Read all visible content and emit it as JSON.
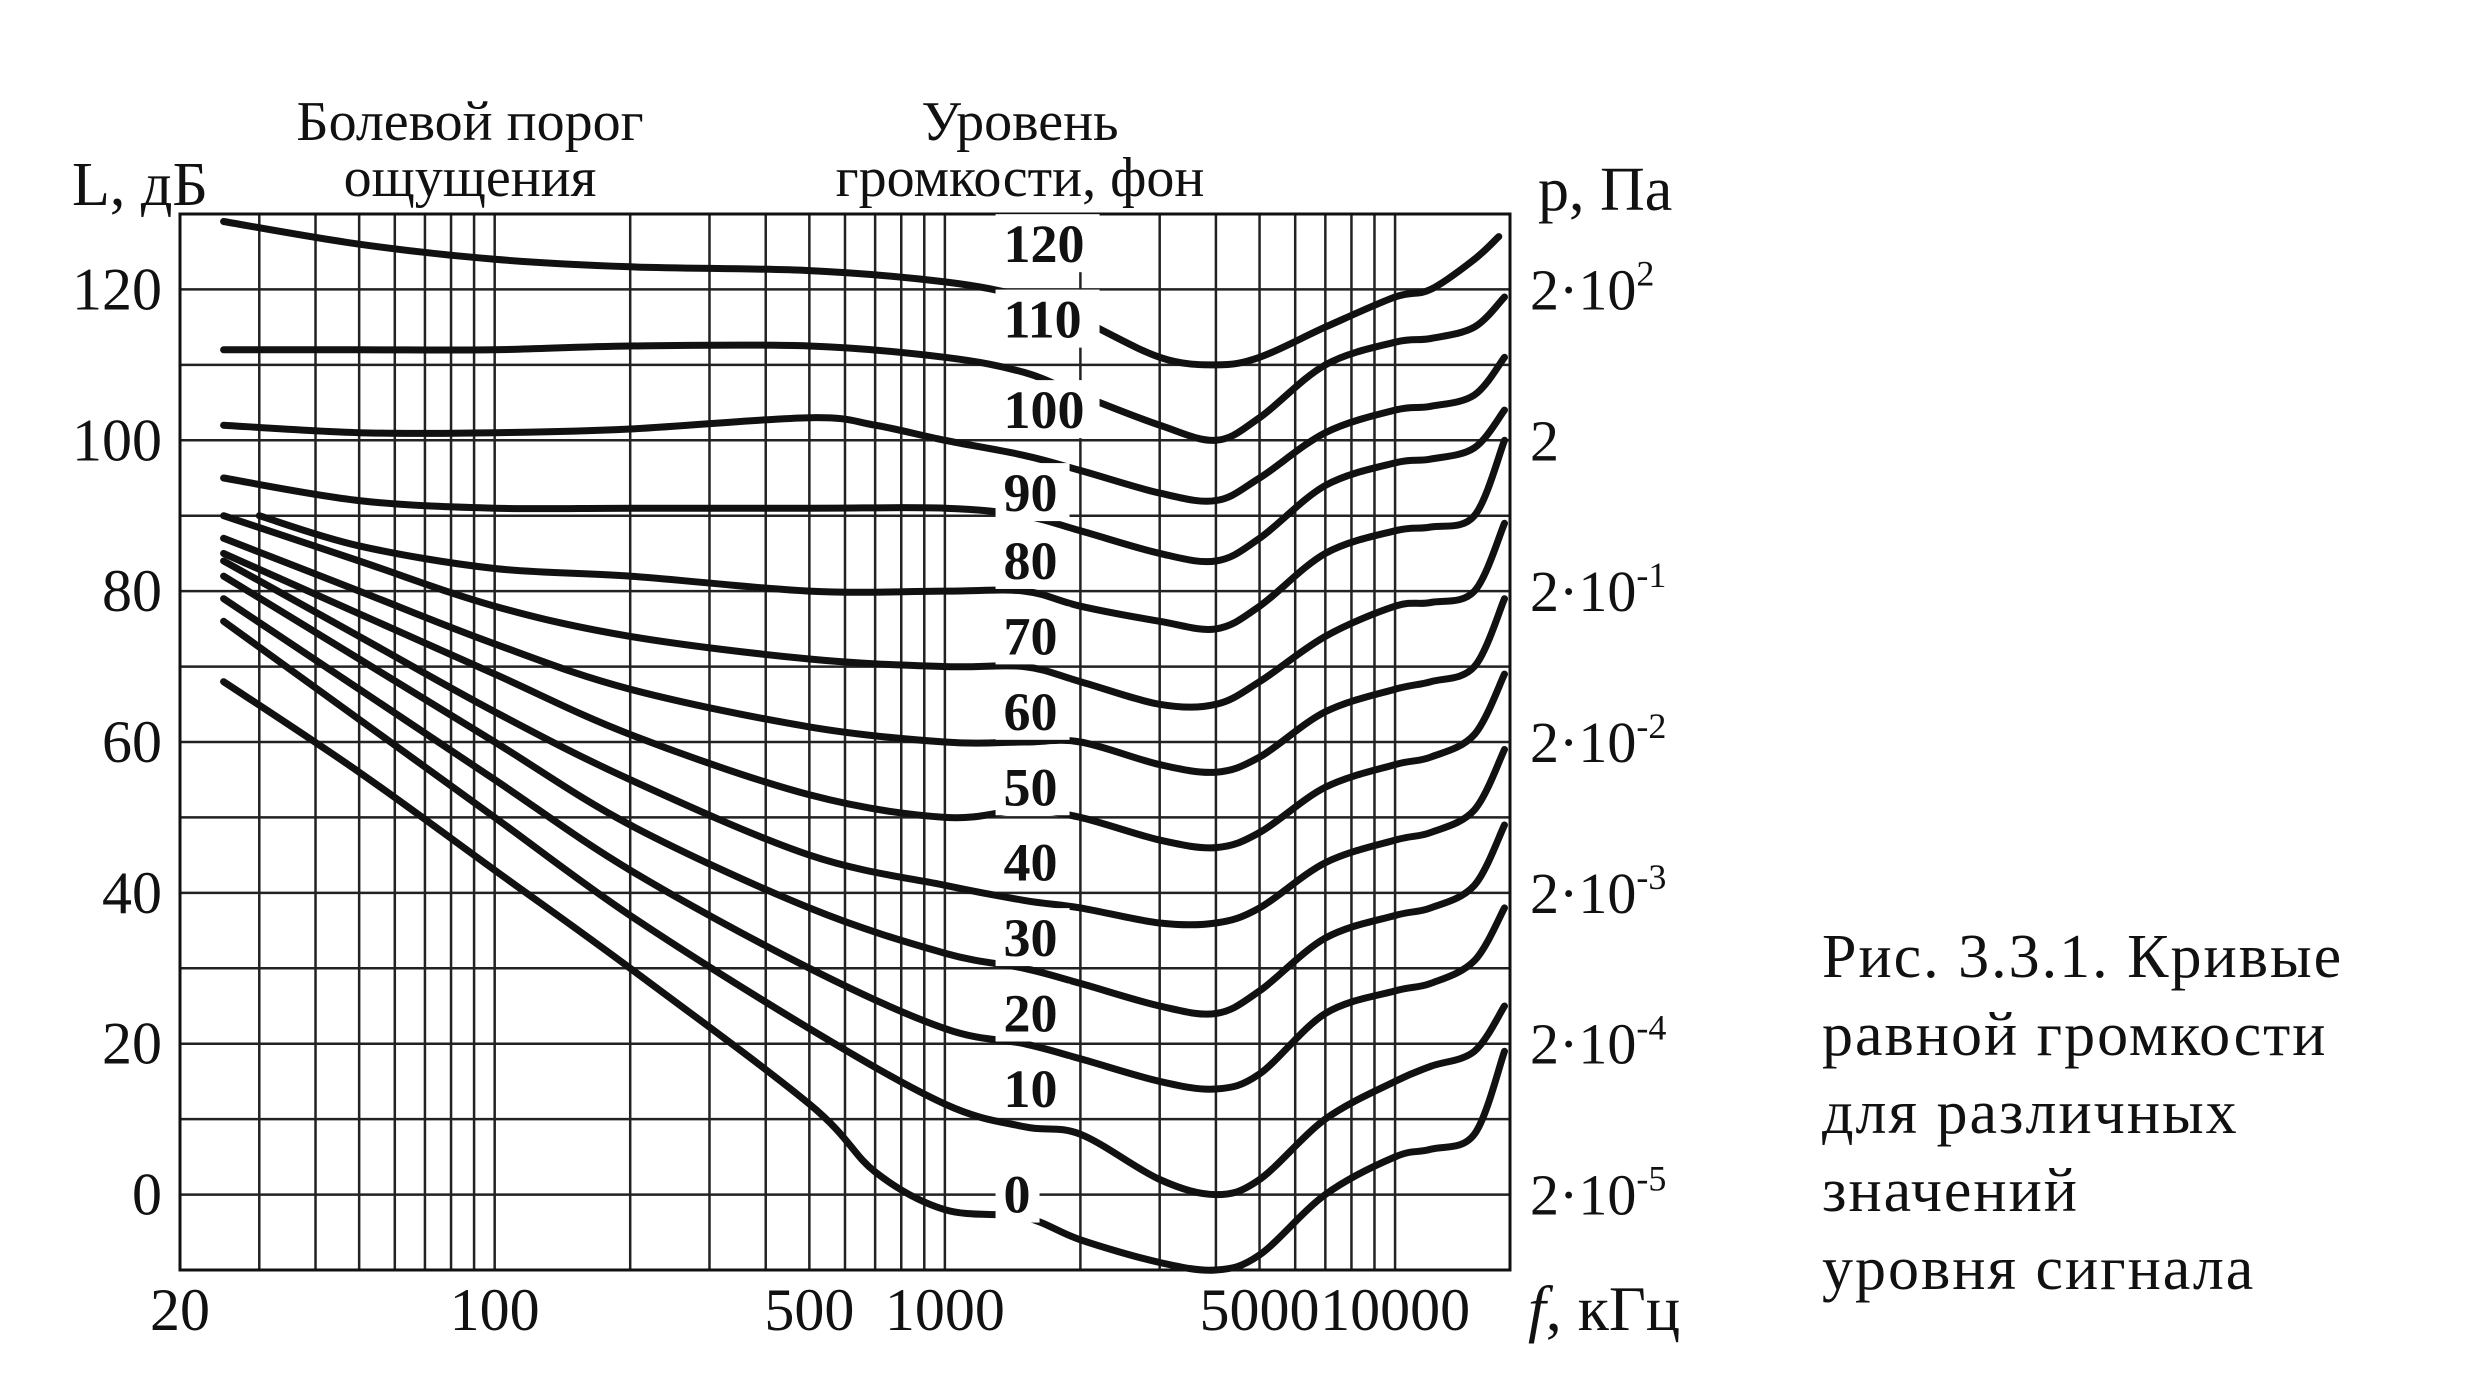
{
  "chart_data": {
    "type": "line",
    "y_axis_label": "L, дБ",
    "x_axis_label_italic": "f",
    "x_axis_label_rest": ", кГц",
    "right_axis_label": "р, Па",
    "annotation_pain": [
      "Болевой порог",
      "ощущения"
    ],
    "annotation_level": [
      "Уровень",
      "громкости, фон"
    ],
    "x_log": true,
    "xlim": [
      20,
      18000
    ],
    "ylim": [
      -10,
      130
    ],
    "grid": true,
    "y_ticks": [
      0,
      20,
      40,
      60,
      80,
      100,
      120
    ],
    "x_tick_labels": [
      {
        "value": 20,
        "label": "20"
      },
      {
        "value": 100,
        "label": "100"
      },
      {
        "value": 500,
        "label": "500"
      },
      {
        "value": 1000,
        "label": "1000"
      },
      {
        "value": 5000,
        "label": "5000"
      },
      {
        "value": 10000,
        "label": "10000"
      }
    ],
    "right_ticks": [
      {
        "y": 120,
        "base": "2·10",
        "exp": "2"
      },
      {
        "y": 100,
        "base": "2",
        "exp": ""
      },
      {
        "y": 80,
        "base": "2·10",
        "exp": "-1"
      },
      {
        "y": 60,
        "base": "2·10",
        "exp": "-2"
      },
      {
        "y": 40,
        "base": "2·10",
        "exp": "-3"
      },
      {
        "y": 20,
        "base": "2·10",
        "exp": "-4"
      },
      {
        "y": 0,
        "base": "2·10",
        "exp": "-5"
      }
    ],
    "series": [
      {
        "name": "120",
        "label_x": 1350,
        "label_y": 126,
        "x": [
          25,
          50,
          100,
          200,
          500,
          1000,
          1500,
          2000,
          3000,
          4000,
          5000,
          7000,
          10000,
          12000,
          15000,
          17000
        ],
        "y": [
          129,
          126,
          124,
          123,
          122.5,
          121,
          119,
          116,
          111,
          110,
          111,
          115,
          119,
          120,
          124,
          127
        ]
      },
      {
        "name": "110",
        "label_x": 1350,
        "label_y": 116,
        "x": [
          25,
          50,
          100,
          200,
          500,
          1000,
          1500,
          2000,
          3000,
          4000,
          5000,
          7000,
          10000,
          12000,
          15000,
          17500
        ],
        "y": [
          112,
          112,
          112,
          112.5,
          112.5,
          111,
          109,
          106,
          102,
          100,
          103,
          110,
          113,
          113.5,
          115,
          119
        ]
      },
      {
        "name": "100",
        "label_x": 1350,
        "label_y": 104,
        "x": [
          25,
          50,
          100,
          200,
          500,
          700,
          1000,
          1500,
          2000,
          3000,
          4000,
          5000,
          7000,
          10000,
          12000,
          15000,
          17500
        ],
        "y": [
          102,
          101,
          101,
          101.5,
          103,
          102,
          100,
          98,
          96,
          93,
          92,
          95,
          101,
          104,
          104.5,
          106,
          111
        ]
      },
      {
        "name": "90",
        "label_x": 1350,
        "label_y": 93,
        "x": [
          25,
          50,
          100,
          200,
          500,
          1000,
          1500,
          2000,
          3000,
          4000,
          5000,
          7000,
          10000,
          12000,
          15000,
          17500
        ],
        "y": [
          95,
          92,
          91,
          91,
          91,
          91,
          90,
          88,
          85,
          84,
          87,
          94,
          97,
          97.5,
          99,
          104
        ]
      },
      {
        "name": "80",
        "label_x": 1350,
        "label_y": 84,
        "x": [
          30,
          50,
          100,
          200,
          500,
          1000,
          1500,
          2000,
          3000,
          4000,
          5000,
          7000,
          10000,
          12000,
          15000,
          17500
        ],
        "y": [
          90,
          86,
          83,
          82,
          80,
          80,
          80,
          78,
          76,
          75,
          78,
          85,
          88,
          88.5,
          90,
          100
        ]
      },
      {
        "name": "70",
        "label_x": 1350,
        "label_y": 74,
        "x": [
          25,
          50,
          100,
          200,
          500,
          1000,
          1500,
          2000,
          3000,
          4000,
          5000,
          7000,
          10000,
          12000,
          15000,
          17500
        ],
        "y": [
          90,
          84,
          78,
          74,
          71,
          70,
          70,
          68,
          65,
          65,
          68,
          74,
          78,
          78.5,
          80,
          89
        ]
      },
      {
        "name": "60",
        "label_x": 1350,
        "label_y": 64,
        "x": [
          25,
          50,
          100,
          200,
          500,
          1000,
          1500,
          2000,
          3000,
          4000,
          5000,
          7000,
          10000,
          12000,
          15000,
          17500
        ],
        "y": [
          87,
          80,
          73,
          67,
          62,
          60,
          60,
          60,
          57,
          56,
          58,
          64,
          67,
          68,
          70,
          79
        ]
      },
      {
        "name": "50",
        "label_x": 1350,
        "label_y": 54,
        "x": [
          25,
          50,
          100,
          200,
          500,
          1000,
          1500,
          2000,
          3000,
          4000,
          5000,
          7000,
          10000,
          12000,
          15000,
          17500
        ],
        "y": [
          85,
          77,
          69,
          61,
          53,
          50,
          51,
          50,
          47,
          46,
          48,
          54,
          57,
          58,
          61,
          69
        ]
      },
      {
        "name": "40",
        "label_x": 1350,
        "label_y": 44,
        "x": [
          25,
          50,
          100,
          200,
          500,
          1000,
          1500,
          2000,
          3000,
          4000,
          5000,
          7000,
          10000,
          12000,
          15000,
          17500
        ],
        "y": [
          84,
          74,
          64,
          55,
          45,
          41,
          39,
          38,
          36,
          36,
          38,
          44,
          47,
          48,
          51,
          59
        ]
      },
      {
        "name": "30",
        "label_x": 1350,
        "label_y": 34,
        "x": [
          25,
          50,
          100,
          200,
          500,
          1000,
          1500,
          2000,
          3000,
          4000,
          5000,
          7000,
          10000,
          12000,
          15000,
          17500
        ],
        "y": [
          82,
          71,
          60,
          49,
          38,
          32,
          30,
          28,
          25,
          24,
          27,
          34,
          37,
          38,
          41,
          49
        ]
      },
      {
        "name": "20",
        "label_x": 1350,
        "label_y": 24,
        "x": [
          25,
          50,
          100,
          200,
          500,
          1000,
          1500,
          2000,
          3000,
          4000,
          5000,
          7000,
          10000,
          12000,
          15000,
          17500
        ],
        "y": [
          79,
          67,
          55,
          43,
          30,
          22,
          20,
          18,
          15,
          14,
          16,
          24,
          27,
          28,
          31,
          38
        ]
      },
      {
        "name": "10",
        "label_x": 1350,
        "label_y": 14,
        "x": [
          25,
          50,
          100,
          200,
          500,
          1000,
          1500,
          2000,
          3000,
          4000,
          5000,
          7000,
          10000,
          12000,
          15000,
          17500
        ],
        "y": [
          76,
          63,
          50,
          37,
          22,
          12,
          9,
          8,
          2,
          0,
          2,
          10,
          15,
          17,
          19,
          25
        ]
      },
      {
        "name": "0",
        "label_x": 1350,
        "label_y": 0,
        "x": [
          25,
          50,
          100,
          200,
          500,
          700,
          1000,
          1500,
          2000,
          3000,
          4000,
          5000,
          7000,
          10000,
          12000,
          15000,
          17500
        ],
        "y": [
          68,
          56,
          43,
          30,
          12,
          3,
          -2,
          -3,
          -6,
          -9,
          -10,
          -8,
          0,
          5,
          6,
          8,
          19
        ]
      }
    ]
  },
  "caption": {
    "lines": [
      "Рис. 3.3.1. Кривые",
      "равной громкости",
      "для различных",
      "значений",
      "уровня сигнала"
    ]
  }
}
